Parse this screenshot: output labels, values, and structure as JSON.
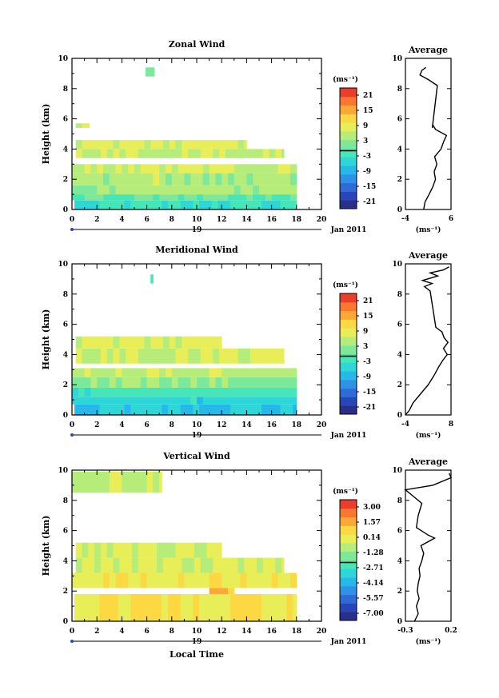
{
  "figure": {
    "time_label": "Local Time",
    "date_label": "Jan 2011",
    "day_label": "19"
  },
  "colormap": [
    "#2a2f8a",
    "#2846b8",
    "#2f6ad6",
    "#2f92e6",
    "#25b8e8",
    "#2ed6d8",
    "#45e6b8",
    "#7de89a",
    "#b6ec7a",
    "#e8ee58",
    "#fcd842",
    "#fca836",
    "#f87830",
    "#ec3c2c"
  ],
  "chart_data": [
    {
      "id": "zonal",
      "type": "heatmap",
      "title": "Zonal Wind",
      "ylabel": "Height (km)",
      "xlabel": "",
      "unit_label": "(ms⁻¹)",
      "x_ticks": [
        "0",
        "2",
        "4",
        "6",
        "8",
        "10",
        "12",
        "14",
        "16",
        "18",
        "20"
      ],
      "y_ticks": [
        "0",
        "2",
        "4",
        "6",
        "8",
        "10"
      ],
      "xlim": [
        0,
        20
      ],
      "ylim": [
        0,
        10
      ],
      "colorbar_ticks": [
        "21",
        "15",
        "9",
        "3",
        "-3",
        "-9",
        "-15",
        "-21"
      ],
      "colorbar_range": [
        -24,
        24
      ],
      "bands": [
        {
          "y0": 0.0,
          "y1": 0.6,
          "x0": 0.2,
          "x1": 18.0,
          "value": -3
        },
        {
          "y0": 0.6,
          "y1": 1.0,
          "x0": 0.0,
          "x1": 18.0,
          "value": 0
        },
        {
          "y0": 1.0,
          "y1": 1.6,
          "x0": 0.0,
          "x1": 18.0,
          "value": 4
        },
        {
          "y0": 1.6,
          "y1": 2.4,
          "x0": 0.0,
          "x1": 18.0,
          "value": 5
        },
        {
          "y0": 2.4,
          "y1": 3.0,
          "x0": 0.0,
          "x1": 18.0,
          "value": 7
        },
        {
          "y0": 3.4,
          "y1": 4.0,
          "x0": 0.3,
          "x1": 17.0,
          "value": 6
        },
        {
          "y0": 4.0,
          "y1": 4.6,
          "x0": 0.3,
          "x1": 14.0,
          "value": 8
        },
        {
          "y0": 5.4,
          "y1": 5.7,
          "x0": 0.3,
          "x1": 1.4,
          "value": 8
        },
        {
          "y0": 8.8,
          "y1": 9.4,
          "x0": 5.9,
          "x1": 6.6,
          "value": 0
        }
      ],
      "profile": {
        "xlim": [
          -4,
          6
        ],
        "x_ticks": [
          "-4",
          "6"
        ],
        "x_tick_values": [
          -4,
          6
        ],
        "title": "Average",
        "unit_label": "(ms⁻¹)",
        "points": [
          [
            0.0,
            0.0
          ],
          [
            0.3,
            0.5
          ],
          [
            1.2,
            1.0
          ],
          [
            2.0,
            1.5
          ],
          [
            2.6,
            2.0
          ],
          [
            2.3,
            2.5
          ],
          [
            2.9,
            3.0
          ],
          [
            2.4,
            3.5
          ],
          [
            3.8,
            4.0
          ],
          [
            4.4,
            4.5
          ],
          [
            5.0,
            4.9
          ],
          [
            2.6,
            5.3
          ],
          [
            2.0,
            5.6
          ],
          [
            1.9,
            5.4
          ],
          [
            3.0,
            8.2
          ],
          [
            1.0,
            8.6
          ],
          [
            -0.8,
            8.9
          ],
          [
            -0.4,
            9.2
          ],
          [
            0.5,
            9.4
          ]
        ]
      }
    },
    {
      "id": "meridional",
      "type": "heatmap",
      "title": "Meridional Wind",
      "ylabel": "Height (km)",
      "xlabel": "",
      "unit_label": "(ms⁻¹)",
      "x_ticks": [
        "0",
        "2",
        "4",
        "6",
        "8",
        "10",
        "12",
        "14",
        "16",
        "18",
        "20"
      ],
      "y_ticks": [
        "0",
        "2",
        "4",
        "6",
        "8",
        "10"
      ],
      "xlim": [
        0,
        20
      ],
      "ylim": [
        0,
        10
      ],
      "colorbar_ticks": [
        "21",
        "15",
        "9",
        "3",
        "-3",
        "-9",
        "-15",
        "-21"
      ],
      "colorbar_range": [
        -24,
        24
      ],
      "bands": [
        {
          "y0": 0.0,
          "y1": 0.7,
          "x0": 0.2,
          "x1": 18.0,
          "value": -7
        },
        {
          "y0": 0.7,
          "y1": 1.2,
          "x0": 0.0,
          "x1": 18.0,
          "value": -5
        },
        {
          "y0": 1.2,
          "y1": 1.8,
          "x0": 0.0,
          "x1": 18.0,
          "value": -2
        },
        {
          "y0": 1.8,
          "y1": 2.5,
          "x0": 0.0,
          "x1": 18.0,
          "value": 3
        },
        {
          "y0": 2.5,
          "y1": 3.1,
          "x0": 0.0,
          "x1": 18.0,
          "value": 6
        },
        {
          "y0": 3.4,
          "y1": 4.4,
          "x0": 0.3,
          "x1": 17.0,
          "value": 7
        },
        {
          "y0": 4.4,
          "y1": 5.2,
          "x0": 0.3,
          "x1": 12.0,
          "value": 8
        },
        {
          "y0": 8.7,
          "y1": 9.3,
          "x0": 6.3,
          "x1": 6.5,
          "value": -2
        }
      ],
      "profile": {
        "xlim": [
          -4,
          8
        ],
        "x_ticks": [
          "-4",
          "8"
        ],
        "x_tick_values": [
          -4,
          8
        ],
        "title": "Average",
        "unit_label": "(ms⁻¹)",
        "points": [
          [
            -4.0,
            0.0
          ],
          [
            -3.0,
            0.3
          ],
          [
            -2.0,
            0.8
          ],
          [
            0.0,
            1.4
          ],
          [
            2.0,
            2.0
          ],
          [
            3.5,
            2.6
          ],
          [
            4.8,
            3.2
          ],
          [
            5.8,
            3.6
          ],
          [
            7.0,
            4.0
          ],
          [
            6.0,
            4.4
          ],
          [
            7.2,
            4.8
          ],
          [
            6.2,
            5.1
          ],
          [
            5.6,
            5.5
          ],
          [
            4.0,
            5.8
          ],
          [
            2.5,
            8.2
          ],
          [
            1.0,
            8.5
          ],
          [
            3.0,
            8.7
          ],
          [
            0.5,
            8.9
          ],
          [
            4.5,
            9.2
          ],
          [
            2.5,
            9.4
          ],
          [
            6.0,
            9.6
          ],
          [
            7.5,
            9.8
          ]
        ]
      }
    },
    {
      "id": "vertical",
      "type": "heatmap",
      "title": "Vertical Wind",
      "ylabel": "Height (km)",
      "xlabel": "Local Time",
      "unit_label": "(ms⁻¹)",
      "x_ticks": [
        "0",
        "2",
        "4",
        "6",
        "8",
        "10",
        "12",
        "14",
        "16",
        "18",
        "20"
      ],
      "y_ticks": [
        "0",
        "2",
        "4",
        "6",
        "8",
        "10"
      ],
      "xlim": [
        0,
        20
      ],
      "ylim": [
        0,
        10
      ],
      "colorbar_ticks": [
        "3.00",
        "1.57",
        "0.14",
        "-1.28",
        "-2.71",
        "-4.14",
        "-5.57",
        "-7.00"
      ],
      "colorbar_range": [
        -8.0,
        4.0
      ],
      "bands": [
        {
          "y0": 0.0,
          "y1": 1.8,
          "x0": 0.2,
          "x1": 18.0,
          "value": 0.5
        },
        {
          "y0": 1.8,
          "y1": 2.2,
          "x0": 11.0,
          "x1": 13.0,
          "value": 1.5
        },
        {
          "y0": 2.2,
          "y1": 3.2,
          "x0": 0.0,
          "x1": 18.0,
          "value": 0.2
        },
        {
          "y0": 3.2,
          "y1": 4.2,
          "x0": 0.3,
          "x1": 17.0,
          "value": -0.2
        },
        {
          "y0": 4.2,
          "y1": 5.2,
          "x0": 0.3,
          "x1": 12.0,
          "value": 0.0
        },
        {
          "y0": 8.5,
          "y1": 9.9,
          "x0": 0.0,
          "x1": 7.2,
          "value": -0.3
        }
      ],
      "profile": {
        "xlim": [
          -0.3,
          0.2
        ],
        "x_ticks": [
          "-0.3",
          "0.2"
        ],
        "x_tick_values": [
          -0.3,
          0.2
        ],
        "title": "Average",
        "unit_label": "(ms⁻¹)",
        "points": [
          [
            -0.2,
            0.0
          ],
          [
            -0.16,
            0.5
          ],
          [
            -0.18,
            1.0
          ],
          [
            -0.15,
            1.5
          ],
          [
            -0.17,
            2.0
          ],
          [
            -0.16,
            2.5
          ],
          [
            -0.14,
            3.0
          ],
          [
            -0.15,
            3.5
          ],
          [
            -0.12,
            4.0
          ],
          [
            -0.1,
            4.5
          ],
          [
            -0.13,
            5.0
          ],
          [
            0.02,
            5.5
          ],
          [
            -0.05,
            5.7
          ],
          [
            -0.18,
            6.2
          ],
          [
            -0.16,
            7.0
          ],
          [
            -0.12,
            7.8
          ],
          [
            -0.2,
            8.2
          ],
          [
            -0.3,
            8.7
          ],
          [
            0.0,
            9.0
          ],
          [
            0.2,
            9.5
          ],
          [
            0.18,
            9.8
          ]
        ]
      }
    }
  ]
}
